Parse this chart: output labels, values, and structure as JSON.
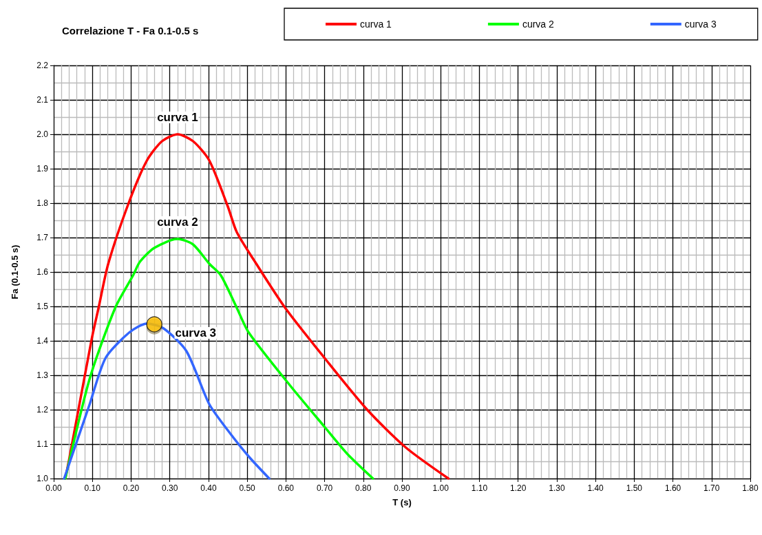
{
  "chart_data": {
    "type": "line",
    "title": "Correlazione T - Fa 0.1-0.5 s",
    "xlabel": "T (s)",
    "ylabel": "Fa (0.1-0.5 s)",
    "xlim": [
      0,
      1.8
    ],
    "xticks": [
      {
        "value": 0,
        "label": "0.00"
      },
      {
        "value": 0.1,
        "label": "0.10"
      },
      {
        "value": 0.2,
        "label": "0.20"
      },
      {
        "value": 0.3,
        "label": "0.30"
      },
      {
        "value": 0.4,
        "label": "0.40"
      },
      {
        "value": 0.5,
        "label": "0.50"
      },
      {
        "value": 0.6,
        "label": "0.60"
      },
      {
        "value": 0.7,
        "label": "0.70"
      },
      {
        "value": 0.8,
        "label": "0.80"
      },
      {
        "value": 0.9,
        "label": "0.90"
      },
      {
        "value": 1,
        "label": "1.00"
      },
      {
        "value": 1.1,
        "label": "1.10"
      },
      {
        "value": 1.2,
        "label": "1.20"
      },
      {
        "value": 1.3,
        "label": "1.30"
      },
      {
        "value": 1.4,
        "label": "1.40"
      },
      {
        "value": 1.5,
        "label": "1.50"
      },
      {
        "value": 1.6,
        "label": "1.60"
      },
      {
        "value": 1.7,
        "label": "1.70"
      },
      {
        "value": 1.8,
        "label": "1.80"
      }
    ],
    "ylim": [
      1,
      2.2
    ],
    "yticks": [
      {
        "value": 1,
        "label": "1.0"
      },
      {
        "value": 1.1,
        "label": "1.1"
      },
      {
        "value": 1.2,
        "label": "1.2"
      },
      {
        "value": 1.3,
        "label": "1.3"
      },
      {
        "value": 1.4,
        "label": "1.4"
      },
      {
        "value": 1.5,
        "label": "1.5"
      },
      {
        "value": 1.6,
        "label": "1.6"
      },
      {
        "value": 1.7,
        "label": "1.7"
      },
      {
        "value": 1.8,
        "label": "1.8"
      },
      {
        "value": 1.9,
        "label": "1.9"
      },
      {
        "value": 2,
        "label": "2.0"
      },
      {
        "value": 2.1,
        "label": "2.1"
      },
      {
        "value": 2.2,
        "label": "2.2"
      }
    ],
    "grid": true,
    "legend": "top right",
    "marker": "none",
    "line_style": "solid",
    "series": [
      {
        "name": "curva 1",
        "color": "#ff0000",
        "x": [
          0.03,
          0.04,
          0.098,
          0.116,
          0.141,
          0.195,
          0.241,
          0.28,
          0.32,
          0.36,
          0.402,
          0.45,
          0.473,
          0.52,
          0.598,
          0.7,
          0.81,
          0.91,
          1.02
        ],
        "values": [
          1.0,
          1.056,
          1.404,
          1.496,
          1.624,
          1.804,
          1.924,
          1.98,
          2.0,
          1.98,
          1.924,
          1.79,
          1.716,
          1.63,
          1.496,
          1.35,
          1.2,
          1.09,
          1.0
        ]
      },
      {
        "name": "curva 2",
        "color": "#00ff00",
        "x": [
          0.03,
          0.093,
          0.159,
          0.205,
          0.223,
          0.26,
          0.32,
          0.36,
          0.402,
          0.432,
          0.473,
          0.504,
          0.611,
          0.7,
          0.76,
          0.825
        ],
        "values": [
          1.0,
          1.29,
          1.496,
          1.59,
          1.63,
          1.67,
          1.696,
          1.68,
          1.624,
          1.59,
          1.496,
          1.424,
          1.27,
          1.15,
          1.07,
          1.0
        ]
      },
      {
        "name": "curva 3",
        "color": "#3366ff",
        "x": [
          0.027,
          0.093,
          0.134,
          0.195,
          0.241,
          0.284,
          0.343,
          0.402,
          0.45,
          0.504,
          0.557
        ],
        "values": [
          1.0,
          1.216,
          1.35,
          1.424,
          1.45,
          1.436,
          1.37,
          1.216,
          1.14,
          1.064,
          1.0
        ]
      },
      {
        "type": "scatter",
        "marker": "circle",
        "color": "#ffc000",
        "x": [
          0.26
        ],
        "values": [
          1.448
        ]
      }
    ],
    "annotations": [
      "curva 1",
      "curva 2",
      "curva 3"
    ]
  }
}
